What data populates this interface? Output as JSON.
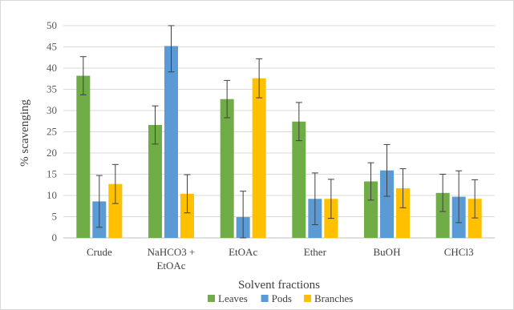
{
  "chart_data": {
    "type": "bar",
    "title": "",
    "xlabel": "Solvent fractions",
    "ylabel": "% scavenging",
    "ylim": [
      0,
      50
    ],
    "yticks": [
      0,
      5,
      10,
      15,
      20,
      25,
      30,
      35,
      40,
      45,
      50
    ],
    "grid": true,
    "legend_position": "bottom",
    "categories": [
      {
        "lines": [
          "Crude"
        ]
      },
      {
        "lines": [
          "NaHCO3 +",
          "EtOAc"
        ]
      },
      {
        "lines": [
          "EtOAc"
        ]
      },
      {
        "lines": [
          "Ether"
        ]
      },
      {
        "lines": [
          "BuOH"
        ]
      },
      {
        "lines": [
          "CHCl3"
        ]
      }
    ],
    "series": [
      {
        "name": "Leaves",
        "color": "#70ad47",
        "values": [
          38.2,
          26.6,
          32.7,
          27.4,
          13.3,
          10.6
        ],
        "error": [
          4.5,
          4.5,
          4.4,
          4.5,
          4.4,
          4.4
        ]
      },
      {
        "name": "Pods",
        "color": "#5b9bd5",
        "values": [
          8.6,
          45.2,
          4.9,
          9.2,
          15.9,
          9.7
        ],
        "error": [
          6.1,
          6.1,
          6.1,
          6.1,
          6.1,
          6.1
        ]
      },
      {
        "name": "Branches",
        "color": "#ffc000",
        "values": [
          12.7,
          10.4,
          37.6,
          9.2,
          11.7,
          9.2
        ],
        "error": [
          4.6,
          4.5,
          4.6,
          4.6,
          4.6,
          4.5
        ]
      }
    ]
  }
}
